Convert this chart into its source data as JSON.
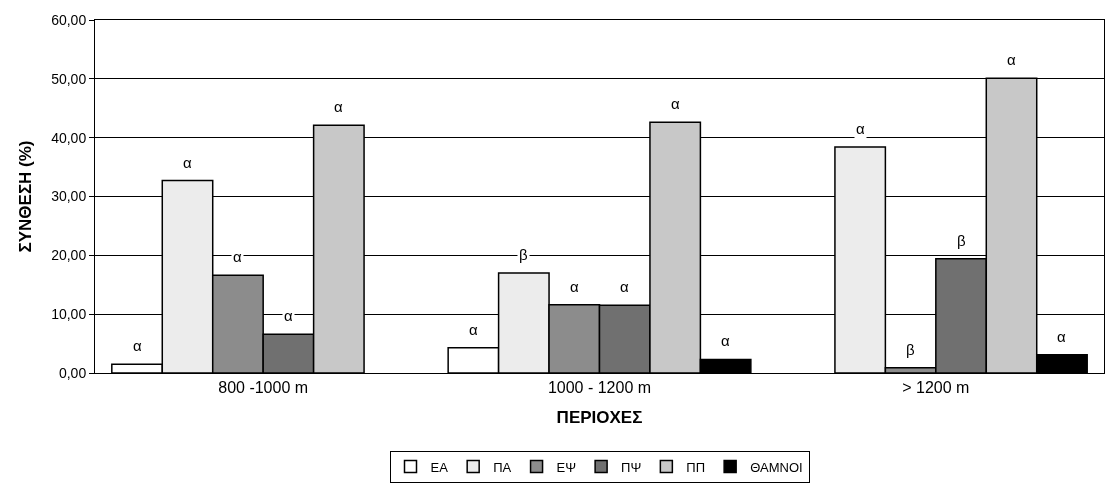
{
  "chart_data": {
    "type": "bar",
    "xlabel": "ΠΕΡΙΟΧΕΣ",
    "ylabel": "ΣΥΝΘΕΣΗ (%)",
    "categories": [
      "800 -1000 m",
      "1000 - 1200 m",
      "> 1200 m"
    ],
    "series": [
      {
        "name": "ΕΑ",
        "color": "#ffffff",
        "values": [
          1.5,
          4.3,
          null
        ],
        "value_labels": [
          "α",
          "α",
          null
        ]
      },
      {
        "name": "ΠΑ",
        "color": "#ececec",
        "values": [
          32.7,
          17.0,
          38.4
        ],
        "value_labels": [
          "α",
          "β",
          "α"
        ]
      },
      {
        "name": "ΕΨ",
        "color": "#8c8c8c",
        "values": [
          16.6,
          11.6,
          0.9
        ],
        "value_labels": [
          "α",
          "α",
          "β"
        ]
      },
      {
        "name": "ΠΨ",
        "color": "#707070",
        "values": [
          6.6,
          11.5,
          19.4
        ],
        "value_labels": [
          "α",
          "α",
          "β"
        ]
      },
      {
        "name": "ΠΠ",
        "color": "#c8c8c8",
        "values": [
          42.1,
          42.6,
          50.1
        ],
        "value_labels": [
          "α",
          "α",
          "α"
        ]
      },
      {
        "name": "ΘΑΜΝΟΙ",
        "color": "#000000",
        "values": [
          null,
          2.3,
          3.1
        ],
        "value_labels": [
          null,
          "α",
          "α"
        ]
      }
    ],
    "ylim": [
      0,
      60
    ],
    "yticks": [
      {
        "value": 0,
        "label": "0,00"
      },
      {
        "value": 10,
        "label": "10,00"
      },
      {
        "value": 20,
        "label": "20,00"
      },
      {
        "value": 30,
        "label": "30,00"
      },
      {
        "value": 40,
        "label": "40,00"
      },
      {
        "value": 50,
        "label": "50,00"
      },
      {
        "value": 60,
        "label": "60,00"
      }
    ],
    "grid": "y",
    "legend": "bottom"
  }
}
